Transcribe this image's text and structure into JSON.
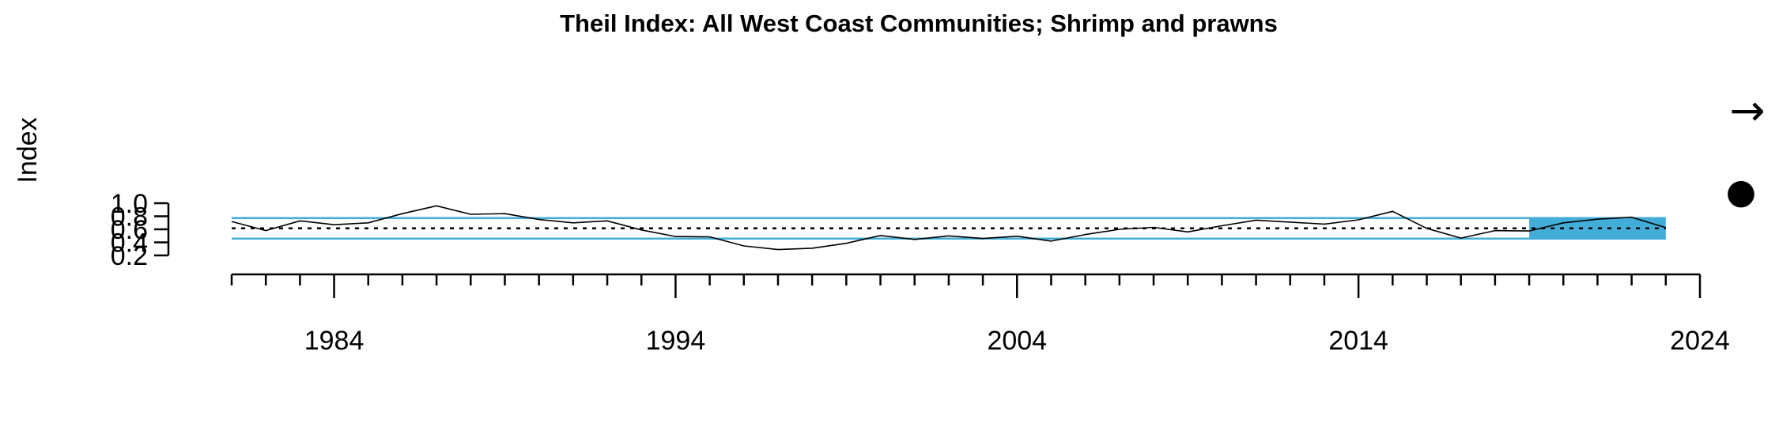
{
  "chart_data": {
    "type": "line",
    "title": "Theil Index: All West Coast Communities; Shrimp and prawns",
    "xlabel": "",
    "ylabel": "Index",
    "xlim": [
      1981,
      2024
    ],
    "ylim": [
      0.2,
      1.0
    ],
    "x_tick_labels": [
      "1984",
      "1994",
      "2004",
      "2014",
      "2024"
    ],
    "x_tick_values": [
      1984,
      1994,
      2004,
      2014,
      2024
    ],
    "x_minor_ticks_every": 1,
    "y_tick_labels": [
      "0.2",
      "0.4",
      "0.6",
      "0.8",
      "1.0"
    ],
    "y_tick_values": [
      0.2,
      0.4,
      0.6,
      0.8,
      1.0
    ],
    "grid": false,
    "series": [
      {
        "x": [
          1981,
          1982,
          1983,
          1984,
          1985,
          1986,
          1987,
          1988,
          1989,
          1990,
          1991,
          1992,
          1993,
          1994,
          1995,
          1996,
          1997,
          1998,
          1999,
          2000,
          2001,
          2002,
          2003,
          2004,
          2005,
          2006,
          2007,
          2008,
          2009,
          2010,
          2011,
          2012,
          2013,
          2014,
          2015,
          2016,
          2017,
          2018,
          2019,
          2020,
          2021,
          2022,
          2023
        ],
        "values": [
          0.72,
          0.58,
          0.73,
          0.67,
          0.7,
          0.84,
          0.96,
          0.83,
          0.84,
          0.75,
          0.7,
          0.73,
          0.59,
          0.49,
          0.485,
          0.345,
          0.29,
          0.31,
          0.385,
          0.505,
          0.445,
          0.5,
          0.46,
          0.495,
          0.42,
          0.52,
          0.6,
          0.63,
          0.56,
          0.655,
          0.74,
          0.71,
          0.68,
          0.745,
          0.875,
          0.615,
          0.465,
          0.58,
          0.575,
          0.7,
          0.755,
          0.785,
          0.625
        ],
        "color": "#000000"
      }
    ],
    "mean": 0.615,
    "upper_sd": 0.772,
    "lower_sd": 0.458,
    "recent_window": [
      2019,
      2023
    ],
    "band_color": "#42AED8",
    "trend_symbol": "→",
    "recent_mean_symbol": "●"
  }
}
